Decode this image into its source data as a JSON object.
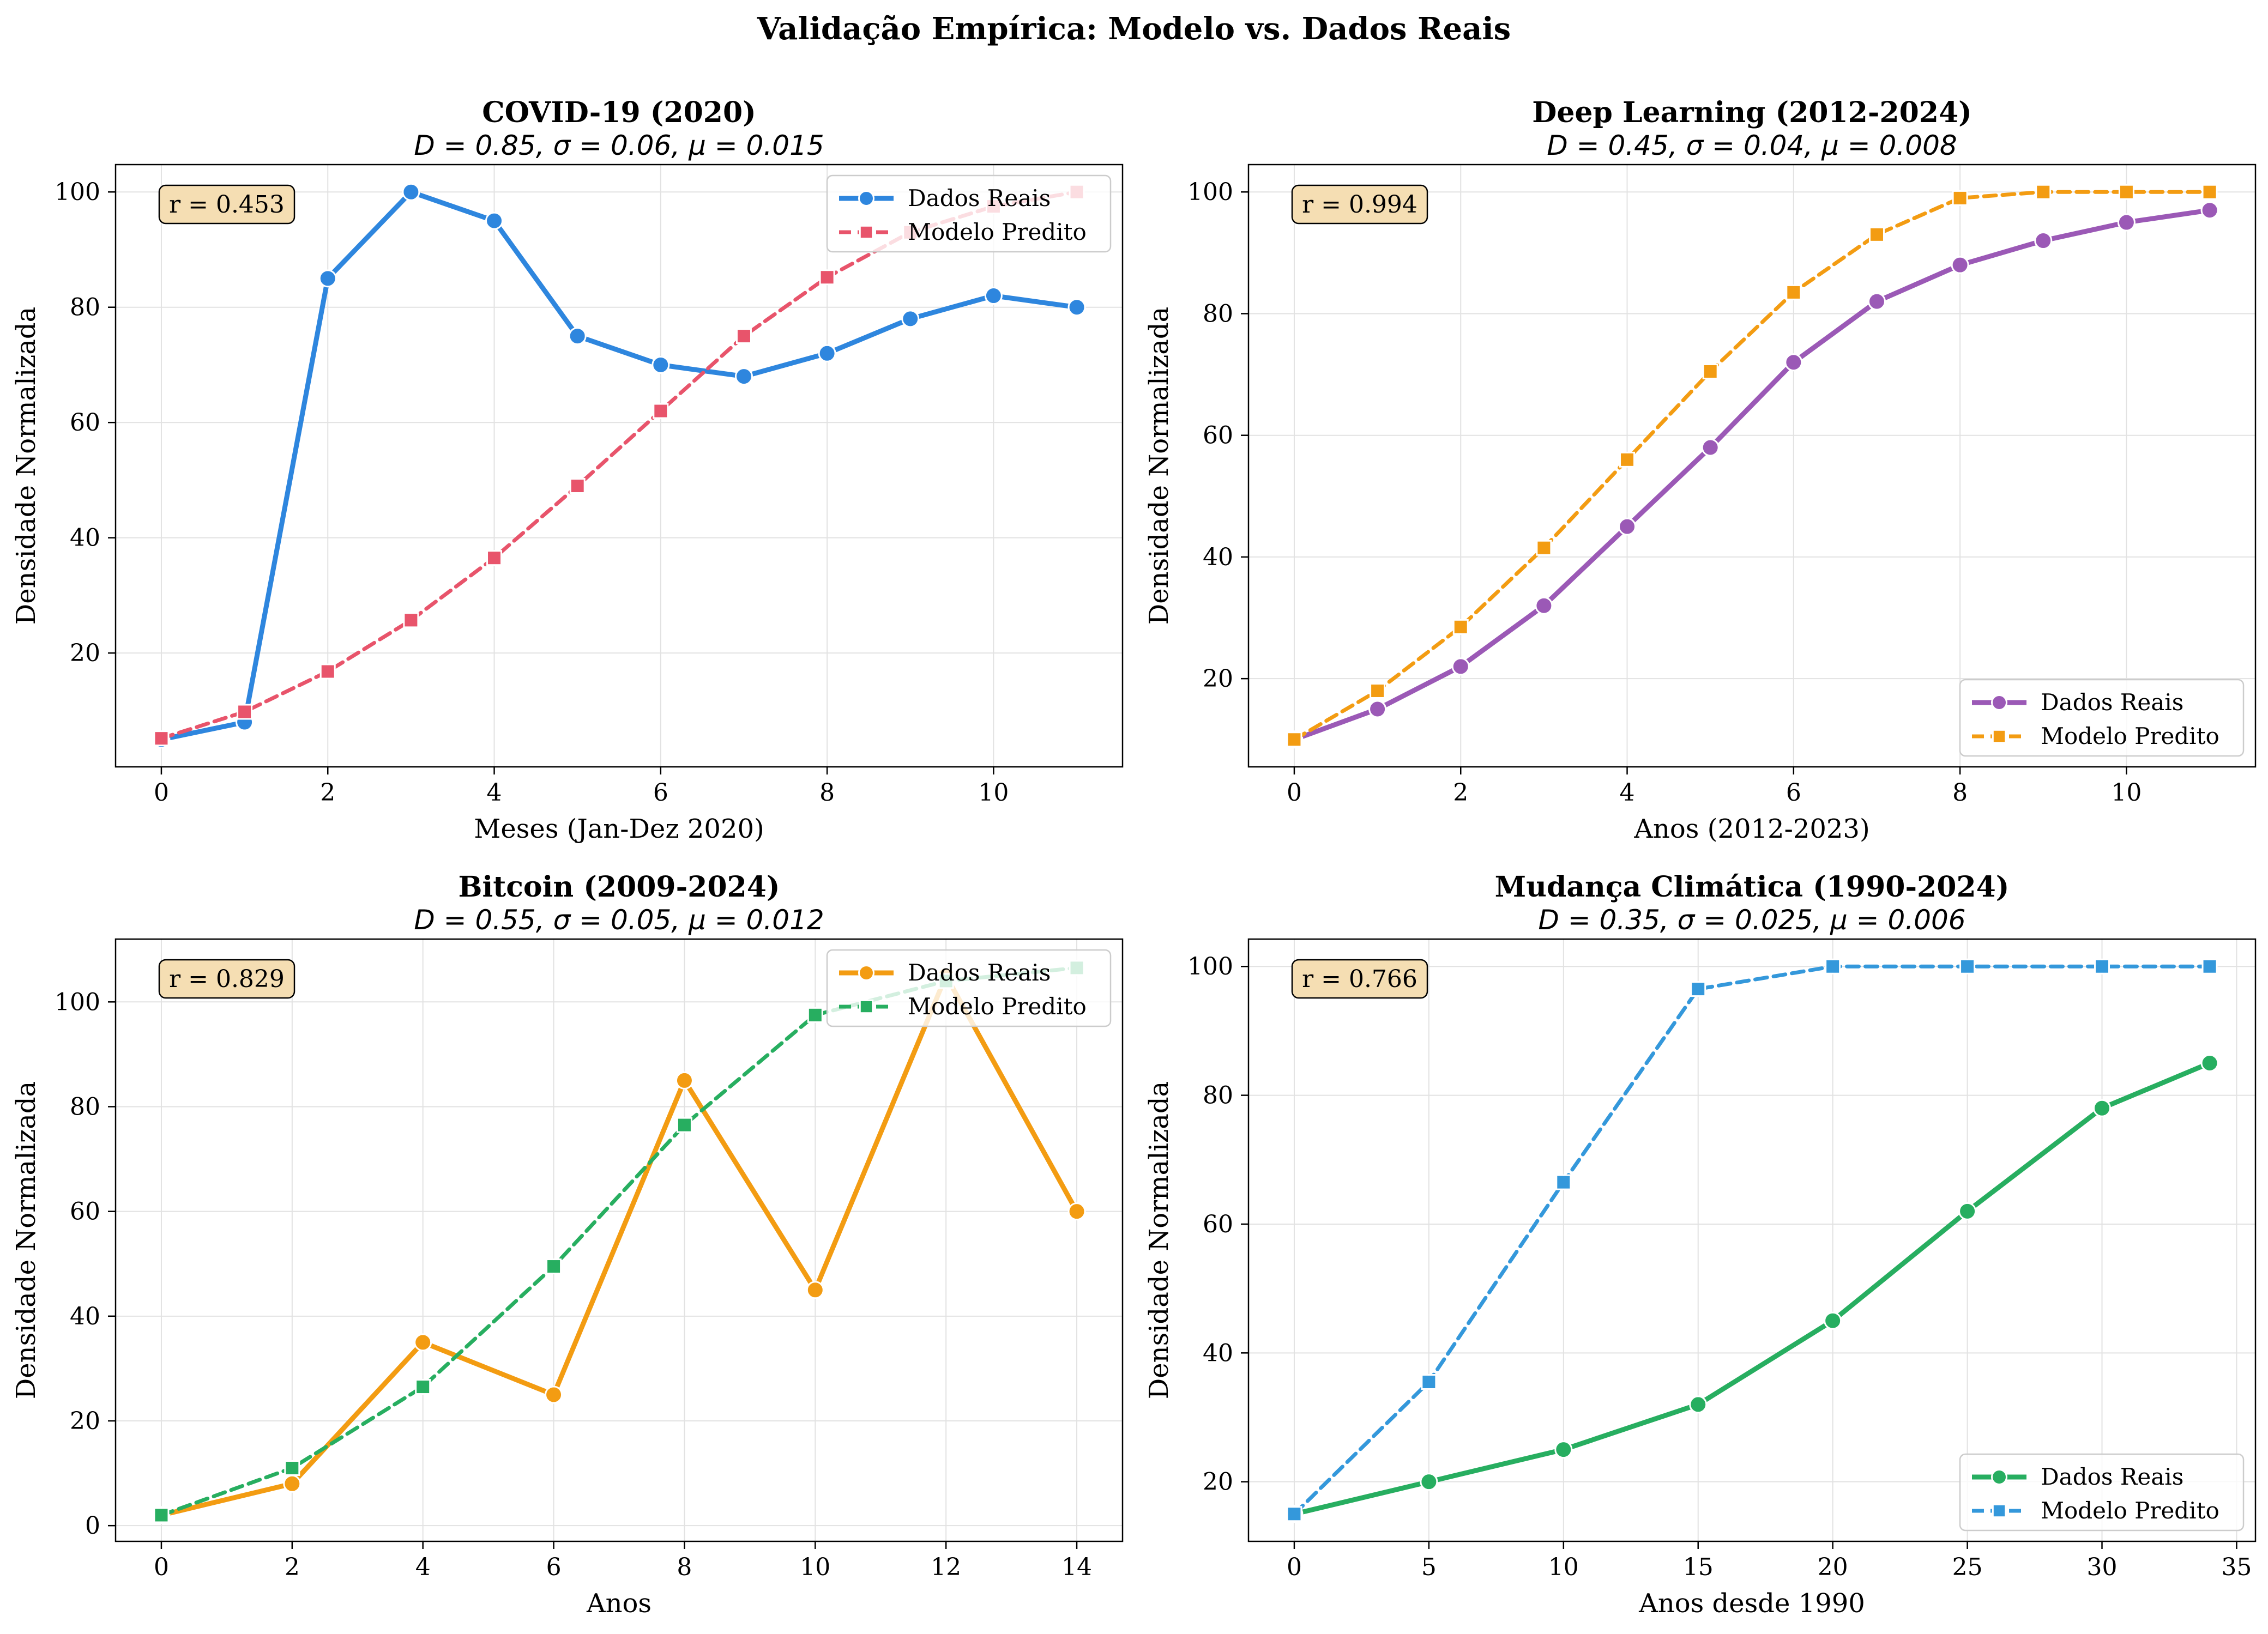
{
  "figure": {
    "title": "Validação Empírica: Modelo vs. Dados Reais"
  },
  "chart_data": [
    {
      "type": "line",
      "title": "COVID-19 (2020)",
      "subtitle": "D = 0.85, σ = 0.06, μ = 0.015",
      "xlabel": "Meses (Jan-Dez 2020)",
      "ylabel": "Densidade Normalizada",
      "xlim": [
        -0.55,
        11.55
      ],
      "ylim": [
        0.25,
        104.75
      ],
      "xticks": [
        0,
        2,
        4,
        6,
        8,
        10
      ],
      "yticks": [
        20,
        40,
        60,
        80,
        100
      ],
      "grid": true,
      "legend_position": "upper right",
      "annotation": "r = 0.453",
      "series": [
        {
          "name": "Dados Reais",
          "color": "#2e86de",
          "style": "solid",
          "marker": "circle",
          "x": [
            0,
            1,
            2,
            3,
            4,
            5,
            6,
            7,
            8,
            9,
            10,
            11
          ],
          "y": [
            5,
            8,
            85,
            100,
            95,
            75,
            70,
            68,
            72,
            78,
            82,
            80
          ]
        },
        {
          "name": "Modelo Predito",
          "color": "#e8546b",
          "style": "dashed",
          "marker": "square",
          "x": [
            0,
            1,
            2,
            3,
            4,
            5,
            6,
            7,
            8,
            9,
            10,
            11
          ],
          "y": [
            5.2,
            9.8,
            16.8,
            25.7,
            36.5,
            49,
            62,
            75,
            85.2,
            93,
            97.5,
            100
          ]
        }
      ]
    },
    {
      "type": "line",
      "title": "Deep Learning (2012-2024)",
      "subtitle": "D = 0.45, σ = 0.04, μ = 0.008",
      "xlabel": "Anos (2012-2023)",
      "ylabel": "Densidade Normalizada",
      "xlim": [
        -0.55,
        11.55
      ],
      "ylim": [
        5.5,
        104.5
      ],
      "xticks": [
        0,
        2,
        4,
        6,
        8,
        10
      ],
      "yticks": [
        20,
        40,
        60,
        80,
        100
      ],
      "grid": true,
      "legend_position": "lower right",
      "annotation": "r = 0.994",
      "series": [
        {
          "name": "Dados Reais",
          "color": "#9b59b6",
          "style": "solid",
          "marker": "circle",
          "x": [
            0,
            1,
            2,
            3,
            4,
            5,
            6,
            7,
            8,
            9,
            10,
            11
          ],
          "y": [
            10,
            15,
            22,
            32,
            45,
            58,
            72,
            82,
            88,
            92,
            95,
            97
          ]
        },
        {
          "name": "Modelo Predito",
          "color": "#f39c12",
          "style": "dashed",
          "marker": "square",
          "x": [
            0,
            1,
            2,
            3,
            4,
            5,
            6,
            7,
            8,
            9,
            10,
            11
          ],
          "y": [
            10,
            18,
            28.5,
            41.5,
            56,
            70.5,
            83.5,
            93,
            99,
            100,
            100,
            100
          ]
        }
      ]
    },
    {
      "type": "line",
      "title": "Bitcoin (2009-2024)",
      "subtitle": "D = 0.55, σ = 0.05, μ = 0.012",
      "xlabel": "Anos",
      "ylabel": "Densidade Normalizada",
      "xlim": [
        -0.7,
        14.7
      ],
      "ylim": [
        -3,
        112
      ],
      "xticks": [
        0,
        2,
        4,
        6,
        8,
        10,
        12,
        14
      ],
      "yticks": [
        0,
        20,
        40,
        60,
        80,
        100
      ],
      "grid": true,
      "legend_position": "upper right",
      "annotation": "r = 0.829",
      "series": [
        {
          "name": "Dados Reais",
          "color": "#f39c12",
          "style": "solid",
          "marker": "circle",
          "x": [
            0,
            2,
            4,
            6,
            8,
            10,
            12,
            14
          ],
          "y": [
            2,
            8,
            35,
            25,
            85,
            45,
            105,
            60
          ]
        },
        {
          "name": "Modelo Predito",
          "color": "#27ae60",
          "style": "dashed",
          "marker": "square",
          "x": [
            0,
            2,
            4,
            6,
            8,
            10,
            12,
            14
          ],
          "y": [
            2,
            11,
            26.5,
            49.5,
            76.5,
            97.5,
            104,
            106.5
          ]
        }
      ]
    },
    {
      "type": "line",
      "title": "Mudança Climática (1990-2024)",
      "subtitle": "D = 0.35, σ = 0.025, μ = 0.006",
      "xlabel": "Anos desde 1990",
      "ylabel": "Densidade Normalizada",
      "xlim": [
        -1.7,
        35.7
      ],
      "ylim": [
        10.75,
        104.25
      ],
      "xticks": [
        0,
        5,
        10,
        15,
        20,
        25,
        30,
        35
      ],
      "yticks": [
        20,
        40,
        60,
        80,
        100
      ],
      "grid": true,
      "legend_position": "lower right",
      "annotation": "r = 0.766",
      "series": [
        {
          "name": "Dados Reais",
          "color": "#27ae60",
          "style": "solid",
          "marker": "circle",
          "x": [
            0,
            5,
            10,
            15,
            20,
            25,
            30,
            34
          ],
          "y": [
            15,
            20,
            25,
            32,
            45,
            62,
            78,
            85
          ]
        },
        {
          "name": "Modelo Predito",
          "color": "#3498db",
          "style": "dashed",
          "marker": "square",
          "x": [
            0,
            5,
            10,
            15,
            20,
            25,
            30,
            34
          ],
          "y": [
            15,
            35.5,
            66.5,
            96.5,
            100,
            100,
            100,
            100
          ]
        }
      ]
    }
  ]
}
